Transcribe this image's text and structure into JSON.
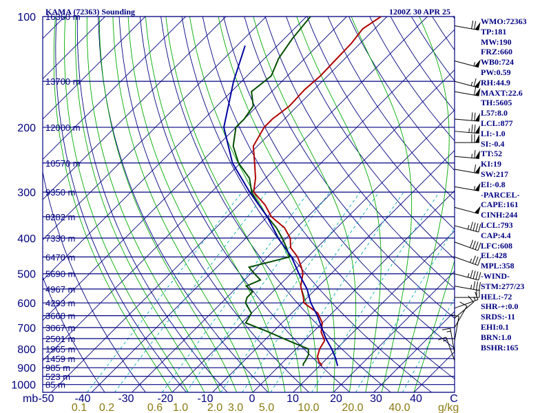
{
  "chart_data": {
    "type": "skew-t",
    "title": "KAMA (72363) Sounding",
    "time": "1200Z 30 APR 25",
    "pressure_axis": {
      "unit": "mb",
      "ticks": [
        100,
        200,
        300,
        400,
        500,
        600,
        700,
        800,
        900,
        1000
      ],
      "range": [
        1050,
        100
      ]
    },
    "temperature_axis": {
      "ticks": [
        "-50",
        "-40",
        "-30",
        "-20",
        "-10",
        "0",
        "10",
        "20",
        "30",
        "40",
        "C"
      ],
      "range": [
        -50,
        50
      ]
    },
    "mixing_ratio_labels": {
      "unit": "g/kg",
      "values": [
        "0.1",
        "0.2",
        "0.6",
        "1.0",
        "2.0",
        "3.0",
        "5.0",
        "10.0",
        "20.0",
        "40.0"
      ]
    },
    "height_labels": [
      {
        "p": 100,
        "label": "16360 m"
      },
      {
        "p": 150,
        "label": "13700 m"
      },
      {
        "p": 200,
        "label": "12000 m"
      },
      {
        "p": 250,
        "label": "10570 m"
      },
      {
        "p": 300,
        "label": "9350 m"
      },
      {
        "p": 350,
        "label": "8282 m"
      },
      {
        "p": 400,
        "label": "7330 m"
      },
      {
        "p": 450,
        "label": "6470 m"
      },
      {
        "p": 500,
        "label": "5690 m"
      },
      {
        "p": 550,
        "label": "4967 m"
      },
      {
        "p": 600,
        "label": "4293 m"
      },
      {
        "p": 650,
        "label": "3660 m"
      },
      {
        "p": 700,
        "label": "3067 m"
      },
      {
        "p": 750,
        "label": "2501 m"
      },
      {
        "p": 800,
        "label": "1965 m"
      },
      {
        "p": 850,
        "label": "1459 m"
      },
      {
        "p": 900,
        "label": "985 m"
      },
      {
        "p": 950,
        "label": "523 m"
      },
      {
        "p": 1000,
        "label": "85 m"
      }
    ],
    "series": [
      {
        "color": "#b00000",
        "points": [
          [
            100,
            -61.5
          ],
          [
            108,
            -63
          ],
          [
            118,
            -62.2
          ],
          [
            132,
            -62
          ],
          [
            145,
            -61.8
          ],
          [
            158,
            -62.3
          ],
          [
            175,
            -62
          ],
          [
            190,
            -63
          ],
          [
            200,
            -63
          ],
          [
            225,
            -61
          ],
          [
            250,
            -56.5
          ],
          [
            275,
            -52.5
          ],
          [
            300,
            -49.5
          ],
          [
            325,
            -43.5
          ],
          [
            350,
            -39
          ],
          [
            375,
            -33
          ],
          [
            400,
            -29
          ],
          [
            425,
            -26.5
          ],
          [
            450,
            -22.5
          ],
          [
            480,
            -19
          ],
          [
            500,
            -17
          ],
          [
            540,
            -14.5
          ],
          [
            580,
            -11
          ],
          [
            600,
            -9.5
          ],
          [
            640,
            -3.5
          ],
          [
            680,
            0
          ],
          [
            720,
            2
          ],
          [
            760,
            5
          ],
          [
            800,
            5.8
          ],
          [
            840,
            7.2
          ],
          [
            870,
            9
          ],
          [
            880,
            10
          ],
          [
            890,
            10.5
          ]
        ]
      },
      {
        "color": "#004d00",
        "points": [
          [
            100,
            -79
          ],
          [
            115,
            -78
          ],
          [
            130,
            -76.5
          ],
          [
            145,
            -74
          ],
          [
            160,
            -75
          ],
          [
            175,
            -71
          ],
          [
            190,
            -70
          ],
          [
            200,
            -70
          ],
          [
            225,
            -66
          ],
          [
            250,
            -60.5
          ],
          [
            275,
            -54
          ],
          [
            300,
            -50
          ],
          [
            325,
            -45
          ],
          [
            350,
            -40
          ],
          [
            375,
            -35
          ],
          [
            400,
            -31
          ],
          [
            425,
            -27.5
          ],
          [
            450,
            -24.5
          ],
          [
            480,
            -32
          ],
          [
            500,
            -29
          ],
          [
            520,
            -26
          ],
          [
            540,
            -28
          ],
          [
            560,
            -25
          ],
          [
            580,
            -25
          ],
          [
            600,
            -24
          ],
          [
            640,
            -20
          ],
          [
            680,
            -19
          ],
          [
            720,
            -11
          ],
          [
            760,
            -4
          ],
          [
            800,
            3
          ],
          [
            830,
            4.5
          ],
          [
            860,
            5.2
          ],
          [
            880,
            5.5
          ],
          [
            890,
            6
          ]
        ]
      },
      {
        "color": "#0000a0",
        "points": [
          [
            120,
            -88
          ],
          [
            150,
            -82
          ],
          [
            200,
            -73
          ],
          [
            250,
            -62
          ],
          [
            300,
            -50.5
          ],
          [
            350,
            -40
          ],
          [
            400,
            -32
          ],
          [
            450,
            -24
          ],
          [
            500,
            -18
          ],
          [
            550,
            -12.2
          ],
          [
            600,
            -7.8
          ],
          [
            650,
            -3
          ],
          [
            700,
            1
          ],
          [
            750,
            4.8
          ],
          [
            800,
            8.8
          ],
          [
            850,
            12.2
          ],
          [
            890,
            14.5
          ]
        ]
      }
    ],
    "gridlines": {
      "isobars": true,
      "isotherms": true,
      "dry_adiabats": true,
      "moist_adiabats": true,
      "mixing_ratio": true
    },
    "colors": {
      "frame": "#000080",
      "isotherm": "#000080",
      "dry_adiabat": "#000080",
      "moist_adiabat": "#00aa00",
      "mixing_ratio": "#00aaaa",
      "temperature": "#b00000",
      "dewpoint": "#004d00",
      "parcel": "#0000a0",
      "wind": "#000000"
    },
    "wind_barbs": [
      {
        "p": 106,
        "dir": 280,
        "spd": 70
      },
      {
        "p": 132,
        "dir": 285,
        "spd": 55
      },
      {
        "p": 150,
        "dir": 285,
        "spd": 65
      },
      {
        "p": 160,
        "dir": 280,
        "spd": 60
      },
      {
        "p": 190,
        "dir": 275,
        "spd": 70
      },
      {
        "p": 205,
        "dir": 275,
        "spd": 75
      },
      {
        "p": 220,
        "dir": 270,
        "spd": 70
      },
      {
        "p": 240,
        "dir": 275,
        "spd": 65
      },
      {
        "p": 260,
        "dir": 280,
        "spd": 60
      },
      {
        "p": 290,
        "dir": 280,
        "spd": 55
      },
      {
        "p": 330,
        "dir": 285,
        "spd": 50
      },
      {
        "p": 370,
        "dir": 285,
        "spd": 45
      },
      {
        "p": 410,
        "dir": 290,
        "spd": 40
      },
      {
        "p": 450,
        "dir": 290,
        "spd": 35
      },
      {
        "p": 500,
        "dir": 285,
        "spd": 45
      },
      {
        "p": 540,
        "dir": 280,
        "spd": 35
      },
      {
        "p": 580,
        "dir": 270,
        "spd": 20
      },
      {
        "p": 620,
        "dir": 250,
        "spd": 15
      },
      {
        "p": 660,
        "dir": 230,
        "spd": 10
      },
      {
        "p": 700,
        "dir": 210,
        "spd": 10
      },
      {
        "p": 760,
        "dir": 190,
        "spd": 10
      },
      {
        "p": 820,
        "dir": 170,
        "spd": 15
      },
      {
        "p": 860,
        "dir": 160,
        "spd": 15
      }
    ]
  },
  "indices": [
    "WMO:72363",
    "TP:181",
    "MW:190",
    "FRZ:660",
    "WB0:724",
    "PW:0.59",
    "RH:44.9",
    "MAXT:22.6",
    "TH:5605",
    "L57:8.0",
    "LCL:877",
    "LI:-1.0",
    "SI:-0.4",
    "TT:52",
    "KI:19",
    "SW:217",
    "EI:-0.8",
    "-PARCEL-",
    "CAPE:161",
    "CINH:244",
    "LCL:793",
    "CAP:4.4",
    "LFC:608",
    "EL:428",
    "MPL:358",
    "-WIND-",
    "STM:277/23",
    "HEL:-72",
    "SHR-+:0.0",
    "SRDS:-11",
    "EHI:0.1",
    "BRN:1.0",
    "BSHR:165"
  ]
}
